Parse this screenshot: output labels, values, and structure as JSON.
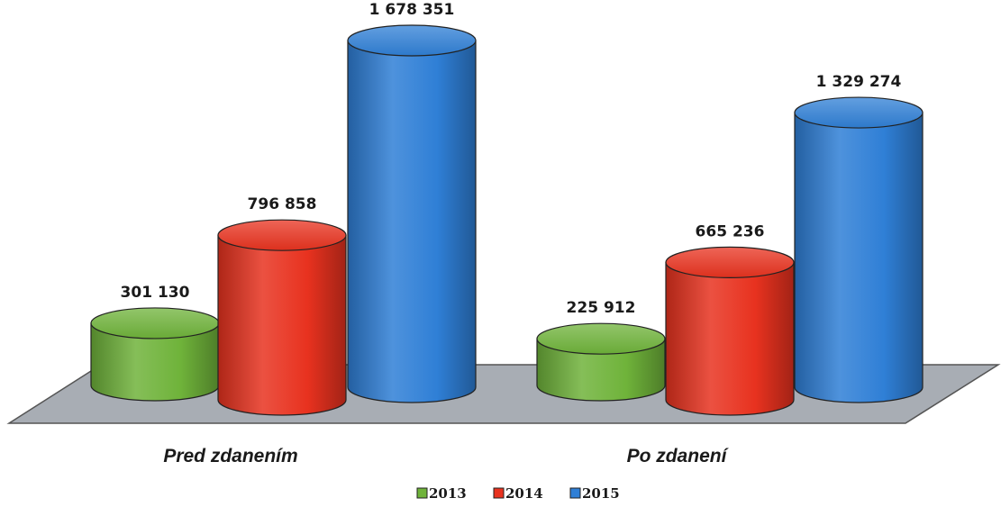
{
  "chart_data": {
    "type": "bar",
    "style": "3d-cylinder",
    "categories": [
      "Pred zdanením",
      "Po zdanení"
    ],
    "series": [
      {
        "name": "2013",
        "color": "#6fb33a",
        "values": [
          301130,
          225912
        ],
        "labels": [
          "301 130",
          "225 912"
        ]
      },
      {
        "name": "2014",
        "color": "#e8321f",
        "values": [
          796858,
          665236
        ],
        "labels": [
          "796 858",
          "665 236"
        ]
      },
      {
        "name": "2015",
        "color": "#2f7fd6",
        "values": [
          1678351,
          1329274
        ],
        "labels": [
          "1 678 351",
          "1 329 274"
        ]
      }
    ],
    "legend_position": "bottom",
    "grid": false,
    "floor_color": "#a8adb4"
  }
}
